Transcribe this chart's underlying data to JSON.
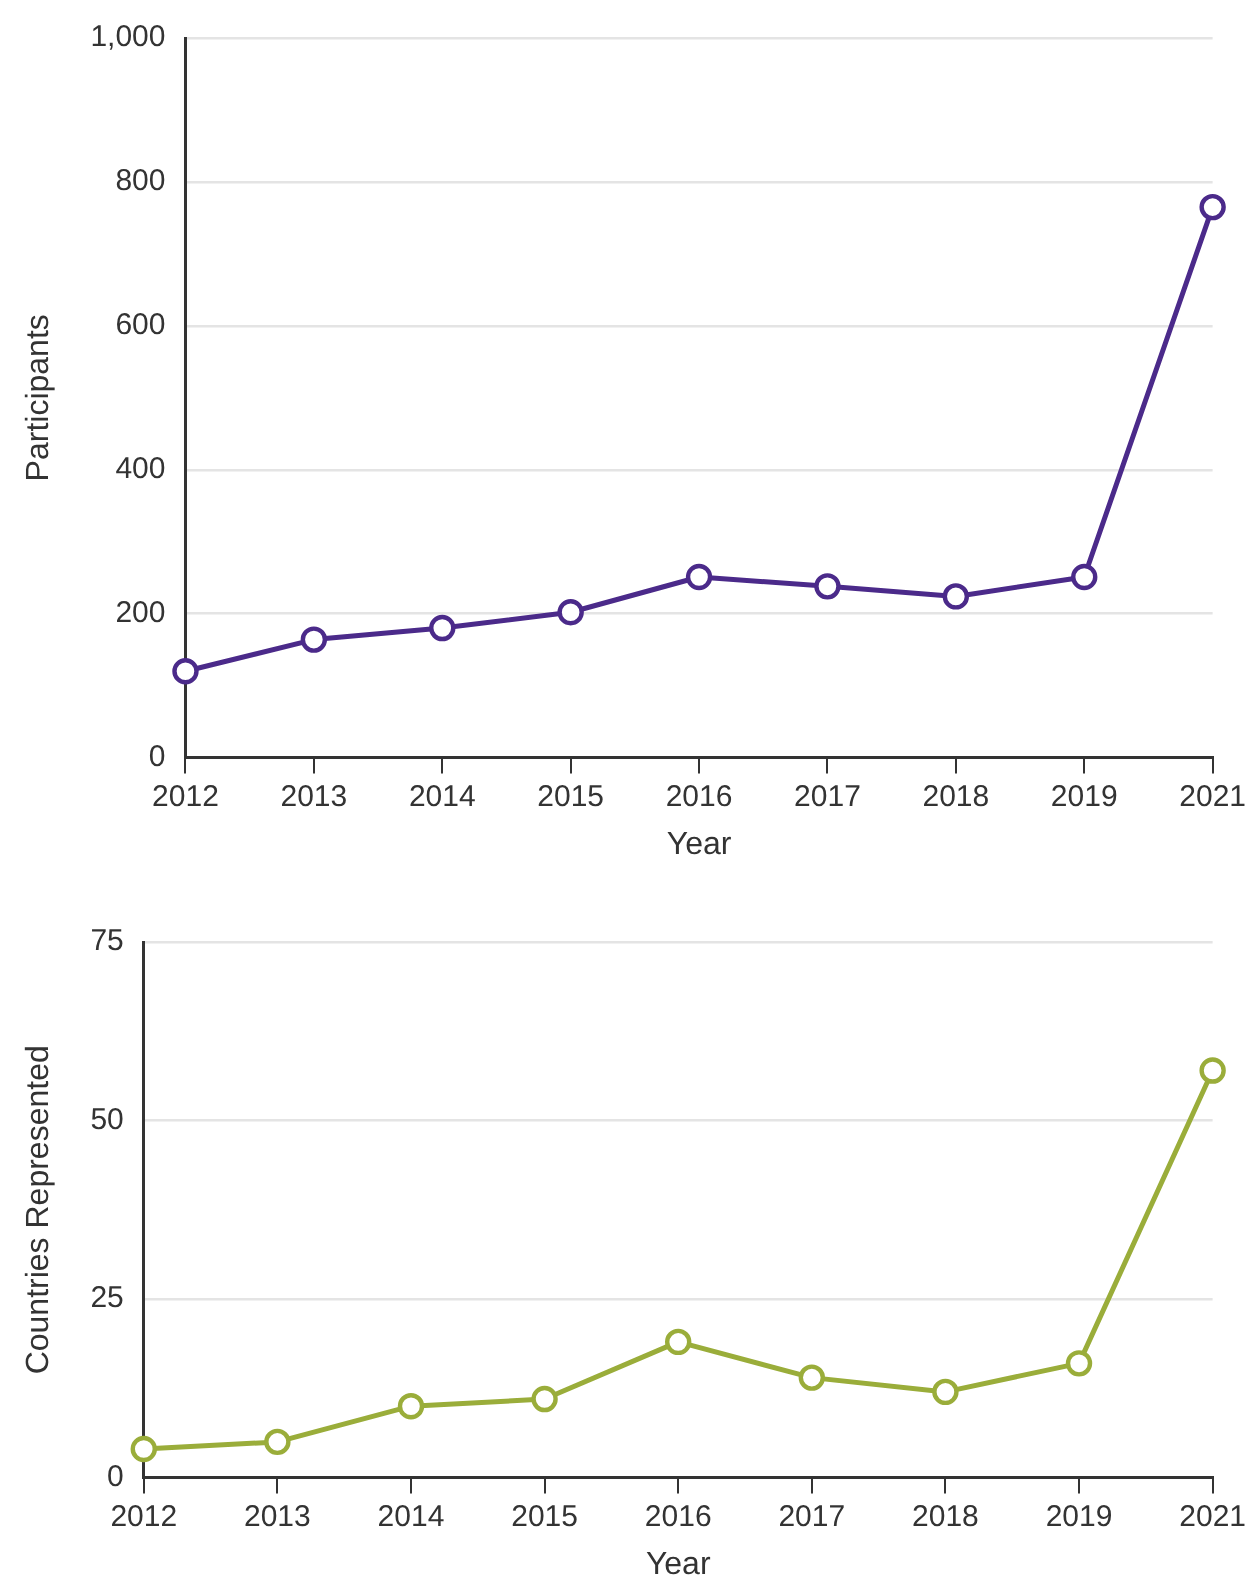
{
  "chart_data": [
    {
      "type": "line",
      "xlabel": "Year",
      "ylabel": "Participants",
      "categories": [
        "2012",
        "2013",
        "2014",
        "2015",
        "2016",
        "2017",
        "2018",
        "2019",
        "2021"
      ],
      "series": [
        {
          "color": "#4b2a8a",
          "values": [
            120,
            164,
            180,
            202,
            251,
            238,
            224,
            251,
            765
          ]
        }
      ],
      "ylim": [
        0,
        1000
      ],
      "yticks": [
        0,
        200,
        400,
        600,
        800,
        {
          "value": 1000,
          "label": "1,000"
        }
      ],
      "grid": "y",
      "marker": "circle",
      "line_style": "solid",
      "legend": false
    },
    {
      "type": "line",
      "xlabel": "Year",
      "ylabel": "Countries Represented",
      "categories": [
        "2012",
        "2013",
        "2014",
        "2015",
        "2016",
        "2017",
        "2018",
        "2019",
        "2021"
      ],
      "series": [
        {
          "color": "#9aad3a",
          "values": [
            4,
            5,
            10,
            11,
            19,
            14,
            12,
            16,
            57
          ]
        }
      ],
      "ylim": [
        0,
        75
      ],
      "yticks": [
        0,
        25,
        50,
        75
      ],
      "grid": "y",
      "marker": "circle",
      "line_style": "solid",
      "legend": false
    }
  ]
}
